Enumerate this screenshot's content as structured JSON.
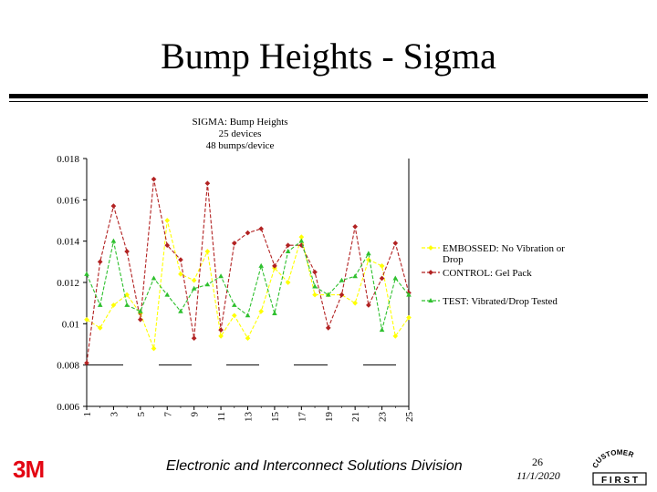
{
  "slide": {
    "title": "Bump Heights - Sigma",
    "footer_logo": "3M",
    "footer_text": "Electronic and Interconnect Solutions Division",
    "page_number": "26",
    "date": "11/1/2020",
    "customer_logo_top": "CUSTOMER",
    "customer_logo_bottom": "F I R S T"
  },
  "chart_data": {
    "type": "line",
    "title": [
      "SIGMA: Bump Heights",
      "25 devices",
      "48 bumps/device"
    ],
    "x": [
      1,
      2,
      3,
      4,
      5,
      6,
      7,
      8,
      9,
      10,
      11,
      12,
      13,
      14,
      15,
      16,
      17,
      18,
      19,
      20,
      21,
      22,
      23,
      24,
      25
    ],
    "x_tick_labels": [
      "1",
      "3",
      "5",
      "7",
      "9",
      "11",
      "13",
      "15",
      "17",
      "19",
      "21",
      "23",
      "25"
    ],
    "y_tick_labels": [
      "0.018",
      "0.016",
      "0.014",
      "0.012",
      "0.01",
      "0.008",
      "0.006"
    ],
    "ylim": [
      0.006,
      0.018
    ],
    "grid": false,
    "legend_position": "right",
    "series": [
      {
        "name": "EMBOSSED: No Vibration or Drop",
        "color": "#ffff00",
        "values": [
          0.0102,
          0.0098,
          0.0109,
          0.0114,
          0.0105,
          0.0088,
          0.015,
          0.0124,
          0.0121,
          0.0135,
          0.0094,
          0.0104,
          0.0093,
          0.0106,
          0.0127,
          0.012,
          0.0142,
          0.0114,
          0.0114,
          0.0114,
          0.011,
          0.0131,
          0.0128,
          0.0094,
          0.0103
        ]
      },
      {
        "name": "CONTROL: Gel Pack",
        "color": "#b22222",
        "values": [
          0.0081,
          0.013,
          0.0157,
          0.0135,
          0.0102,
          0.017,
          0.0138,
          0.0131,
          0.0093,
          0.0168,
          0.0097,
          0.0139,
          0.0144,
          0.0146,
          0.0128,
          0.0138,
          0.0138,
          0.0125,
          0.0098,
          0.0114,
          0.0147,
          0.0109,
          0.0122,
          0.0139,
          0.0115
        ]
      },
      {
        "name": "TEST: Vibrated/Drop Tested",
        "color": "#2ec02e",
        "values": [
          0.0124,
          0.0109,
          0.014,
          0.0109,
          0.0106,
          0.0122,
          0.0114,
          0.0106,
          0.0117,
          0.0119,
          0.0123,
          0.0109,
          0.0104,
          0.0128,
          0.0105,
          0.0135,
          0.014,
          0.0118,
          0.0114,
          0.0121,
          0.0123,
          0.0134,
          0.0097,
          0.0122,
          0.0114
        ]
      }
    ]
  }
}
